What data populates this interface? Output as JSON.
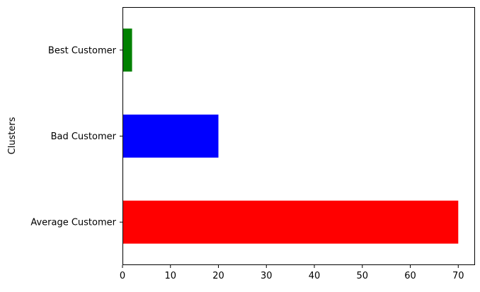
{
  "chart_data": {
    "type": "bar",
    "orientation": "horizontal",
    "title": "",
    "xlabel": "",
    "ylabel": "Clusters",
    "categories": [
      "Average Customer",
      "Bad Customer",
      "Best Customer"
    ],
    "values": [
      70,
      20,
      2
    ],
    "colors": [
      "#ff0000",
      "#0000ff",
      "#008000"
    ],
    "xlim": [
      0,
      73.5
    ],
    "xticks": [
      0,
      10,
      20,
      30,
      40,
      50,
      60,
      70
    ],
    "grid": false,
    "legend": "none"
  }
}
